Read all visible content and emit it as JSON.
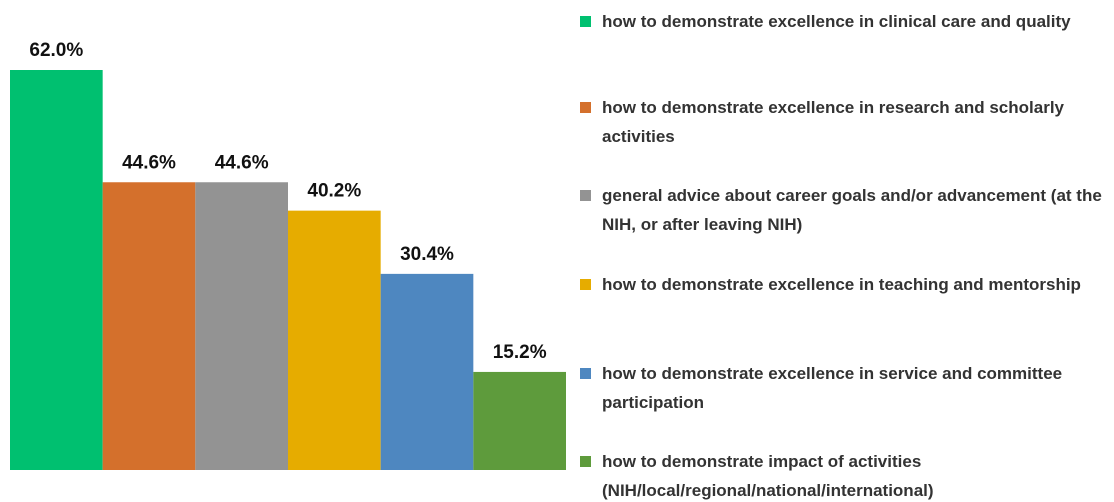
{
  "chart_data": {
    "type": "bar",
    "categories": [
      "how to demonstrate excellence in clinical care and quality",
      "how to demonstrate excellence in research and scholarly activities",
      "general advice about career goals and/or advancement (at the NIH, or after leaving NIH)",
      "how to demonstrate excellence in teaching and mentorship",
      "how to demonstrate excellence in service and committee participation",
      "how to demonstrate impact of activities (NIH/local/regional/national/international)"
    ],
    "values": [
      62.0,
      44.6,
      44.6,
      40.2,
      30.4,
      15.2
    ],
    "value_labels": [
      "62.0%",
      "44.6%",
      "44.6%",
      "40.2%",
      "30.4%",
      "15.2%"
    ],
    "colors": [
      "#00c070",
      "#d4702c",
      "#939393",
      "#e6ac00",
      "#4e87c0",
      "#5e9b3c"
    ],
    "legend": "right"
  }
}
